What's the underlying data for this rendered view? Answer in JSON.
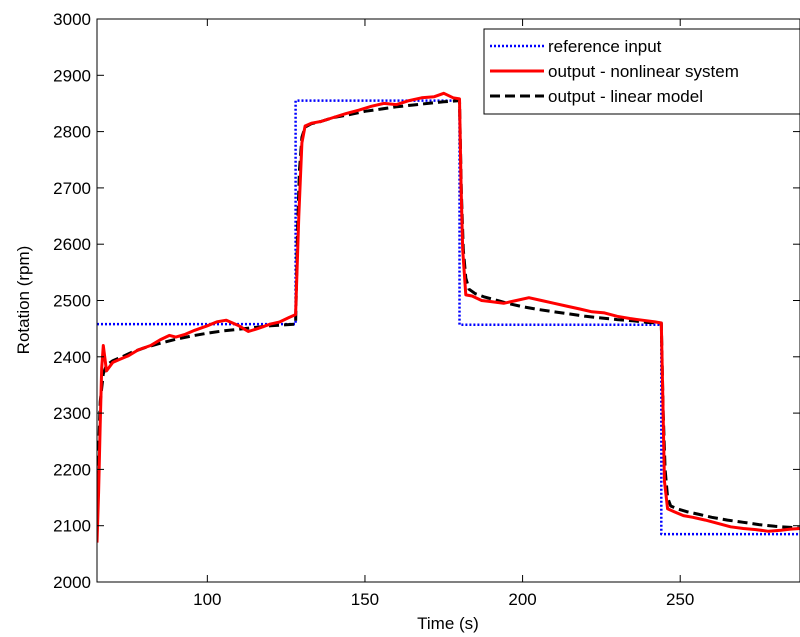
{
  "chart_data": {
    "type": "line",
    "title": "",
    "xlabel": "Time (s)",
    "ylabel": "Rotation (rpm)",
    "xlim": [
      65,
      288
    ],
    "ylim": [
      2000,
      3000
    ],
    "xticks": [
      100,
      150,
      200,
      250
    ],
    "yticks": [
      2000,
      2100,
      2200,
      2300,
      2400,
      2500,
      2600,
      2700,
      2800,
      2900,
      3000
    ],
    "grid": false,
    "legend_position": "top-right",
    "series": [
      {
        "name": "reference input",
        "color": "#0000ff",
        "style": "dotted",
        "x": [
          65,
          128,
          128,
          180,
          180,
          244,
          244,
          288
        ],
        "y": [
          2458,
          2458,
          2855,
          2855,
          2457,
          2457,
          2085,
          2085
        ]
      },
      {
        "name": "output - nonlinear system",
        "color": "#ff0000",
        "style": "solid",
        "x": [
          65,
          65.5,
          66,
          66.5,
          67,
          68,
          70,
          72,
          75,
          78,
          82,
          85,
          88,
          90,
          93,
          96,
          100,
          103,
          106,
          110,
          113,
          116,
          120,
          123,
          126,
          128,
          129,
          130,
          131,
          133,
          136,
          140,
          144,
          148,
          152,
          156,
          160,
          164,
          168,
          172,
          175,
          178,
          180,
          180.5,
          181,
          182,
          184,
          187,
          190,
          194,
          198,
          202,
          206,
          210,
          214,
          218,
          222,
          226,
          230,
          234,
          238,
          242,
          244,
          244.5,
          245,
          246,
          248,
          251,
          254,
          258,
          262,
          266,
          270,
          274,
          278,
          282,
          285,
          288
        ],
        "y": [
          2070,
          2160,
          2280,
          2380,
          2420,
          2375,
          2390,
          2395,
          2402,
          2412,
          2420,
          2430,
          2438,
          2435,
          2440,
          2447,
          2455,
          2462,
          2465,
          2455,
          2445,
          2450,
          2458,
          2462,
          2470,
          2475,
          2650,
          2780,
          2810,
          2815,
          2818,
          2825,
          2832,
          2838,
          2845,
          2850,
          2848,
          2855,
          2860,
          2862,
          2868,
          2860,
          2858,
          2700,
          2590,
          2510,
          2508,
          2500,
          2498,
          2495,
          2500,
          2505,
          2500,
          2495,
          2490,
          2485,
          2480,
          2478,
          2472,
          2468,
          2465,
          2462,
          2460,
          2320,
          2180,
          2130,
          2125,
          2118,
          2115,
          2110,
          2104,
          2098,
          2095,
          2093,
          2090,
          2092,
          2094,
          2095
        ]
      },
      {
        "name": "output - linear model",
        "color": "#000000",
        "style": "dashed",
        "x": [
          65,
          65.5,
          66,
          67,
          68,
          70,
          73,
          76,
          80,
          85,
          90,
          95,
          100,
          105,
          110,
          115,
          120,
          125,
          128,
          128.6,
          129.2,
          130,
          131,
          133,
          136,
          140,
          145,
          150,
          155,
          160,
          165,
          170,
          175,
          180,
          180.6,
          181.2,
          182,
          183,
          185,
          188,
          192,
          196,
          200,
          205,
          210,
          215,
          220,
          225,
          230,
          235,
          240,
          244,
          244.6,
          245.2,
          246,
          247,
          249,
          252,
          256,
          260,
          265,
          270,
          275,
          280,
          285,
          288
        ],
        "y": [
          2100,
          2230,
          2320,
          2370,
          2385,
          2393,
          2400,
          2408,
          2416,
          2424,
          2431,
          2437,
          2442,
          2446,
          2449,
          2452,
          2455,
          2457,
          2458,
          2620,
          2730,
          2790,
          2808,
          2814,
          2818,
          2825,
          2830,
          2836,
          2840,
          2844,
          2847,
          2850,
          2853,
          2855,
          2690,
          2590,
          2540,
          2520,
          2512,
          2506,
          2500,
          2494,
          2489,
          2484,
          2480,
          2476,
          2472,
          2469,
          2466,
          2464,
          2461,
          2460,
          2300,
          2200,
          2150,
          2135,
          2130,
          2125,
          2120,
          2115,
          2110,
          2106,
          2102,
          2099,
          2097,
          2096
        ]
      }
    ]
  }
}
